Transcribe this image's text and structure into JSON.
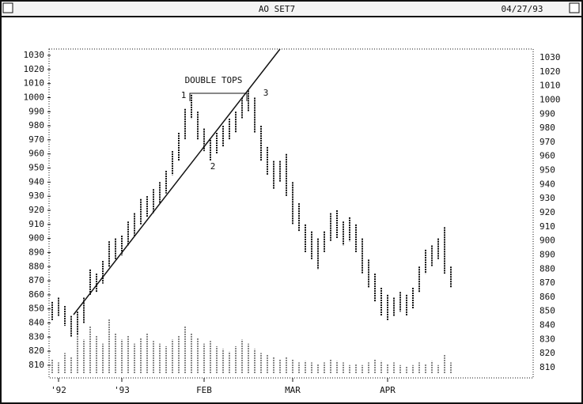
{
  "chart_data": {
    "type": "range-bar",
    "title": "AO SET7",
    "date": "04/27/93",
    "annotations": [
      "DOUBLE TOPS",
      "1",
      "2",
      "3"
    ],
    "ylim": [
      810,
      1030
    ],
    "yticks": [
      810,
      820,
      830,
      840,
      850,
      860,
      870,
      880,
      890,
      900,
      910,
      920,
      930,
      940,
      950,
      960,
      970,
      980,
      990,
      1000,
      1010,
      1020,
      1030
    ],
    "xlim": [
      0,
      63
    ],
    "xticks": [
      {
        "value": 1,
        "label": "'92"
      },
      {
        "value": 11,
        "label": "'93"
      },
      {
        "value": 24,
        "label": "FEB"
      },
      {
        "value": 38,
        "label": "MAR"
      },
      {
        "value": 53,
        "label": "APR"
      }
    ],
    "high": [
      855,
      858,
      852,
      845,
      848,
      858,
      878,
      875,
      884,
      898,
      900,
      902,
      912,
      918,
      928,
      930,
      935,
      940,
      948,
      962,
      975,
      992,
      1002,
      990,
      978,
      970,
      975,
      980,
      985,
      990,
      1000,
      1005,
      1000,
      980,
      965,
      955,
      955,
      960,
      940,
      925,
      910,
      905,
      900,
      905,
      918,
      920,
      912,
      915,
      910,
      900,
      885,
      875,
      865,
      860,
      858,
      862,
      860,
      865,
      880,
      892,
      895,
      900,
      908,
      880
    ],
    "low": [
      842,
      845,
      838,
      830,
      832,
      840,
      860,
      862,
      868,
      880,
      885,
      888,
      895,
      902,
      910,
      915,
      918,
      925,
      932,
      945,
      955,
      970,
      985,
      970,
      962,
      955,
      960,
      965,
      970,
      975,
      985,
      990,
      975,
      955,
      945,
      935,
      940,
      930,
      910,
      905,
      890,
      885,
      878,
      890,
      898,
      900,
      895,
      898,
      890,
      875,
      865,
      855,
      845,
      842,
      845,
      848,
      845,
      850,
      862,
      875,
      880,
      885,
      875,
      865
    ],
    "volume": [
      10,
      8,
      15,
      12,
      30,
      25,
      35,
      28,
      22,
      40,
      30,
      25,
      28,
      22,
      26,
      30,
      24,
      22,
      20,
      25,
      28,
      35,
      30,
      26,
      22,
      24,
      20,
      18,
      16,
      20,
      25,
      22,
      18,
      15,
      14,
      12,
      10,
      12,
      10,
      8,
      9,
      8,
      7,
      8,
      10,
      9,
      8,
      6,
      7,
      6,
      8,
      10,
      9,
      7,
      8,
      6,
      5,
      6,
      8,
      7,
      9,
      6,
      14,
      8
    ],
    "color": "#111111"
  }
}
